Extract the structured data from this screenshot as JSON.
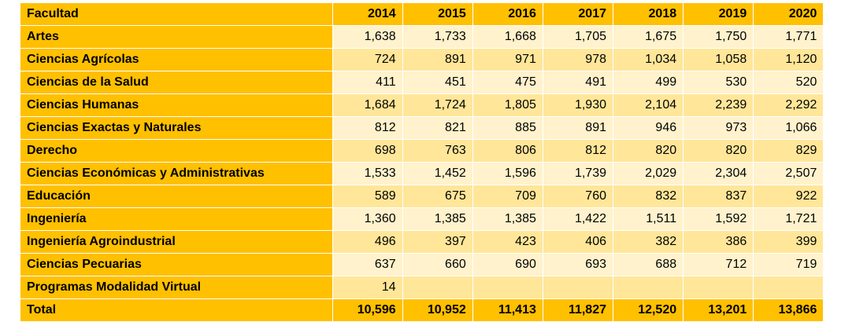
{
  "table": {
    "header": {
      "facultad": "Facultad",
      "years": [
        "2014",
        "2015",
        "2016",
        "2017",
        "2018",
        "2019",
        "2020"
      ]
    },
    "rows": [
      {
        "name": "Artes",
        "values": [
          "1,638",
          "1,733",
          "1,668",
          "1,705",
          "1,675",
          "1,750",
          "1,771"
        ]
      },
      {
        "name": "Ciencias Agrícolas",
        "values": [
          "724",
          "891",
          "971",
          "978",
          "1,034",
          "1,058",
          "1,120"
        ]
      },
      {
        "name": "Ciencias de la Salud",
        "values": [
          "411",
          "451",
          "475",
          "491",
          "499",
          "530",
          "520"
        ]
      },
      {
        "name": "Ciencias Humanas",
        "values": [
          "1,684",
          "1,724",
          "1,805",
          "1,930",
          "2,104",
          "2,239",
          "2,292"
        ]
      },
      {
        "name": "Ciencias Exactas y Naturales",
        "values": [
          "812",
          "821",
          "885",
          "891",
          "946",
          "973",
          "1,066"
        ]
      },
      {
        "name": "Derecho",
        "values": [
          "698",
          "763",
          "806",
          "812",
          "820",
          "820",
          "829"
        ]
      },
      {
        "name": "Ciencias Económicas y Administrativas",
        "values": [
          "1,533",
          "1,452",
          "1,596",
          "1,739",
          "2,029",
          "2,304",
          "2,507"
        ]
      },
      {
        "name": "Educación",
        "values": [
          "589",
          "675",
          "709",
          "760",
          "832",
          "837",
          "922"
        ]
      },
      {
        "name": "Ingeniería",
        "values": [
          "1,360",
          "1,385",
          "1,385",
          "1,422",
          "1,511",
          "1,592",
          "1,721"
        ]
      },
      {
        "name": "Ingeniería Agroindustrial",
        "values": [
          "496",
          "397",
          "423",
          "406",
          "382",
          "386",
          "399"
        ]
      },
      {
        "name": "Ciencias Pecuarias",
        "values": [
          "637",
          "660",
          "690",
          "693",
          "688",
          "712",
          "719"
        ]
      },
      {
        "name": "Programas Modalidad Virtual",
        "values": [
          "14",
          "",
          "",
          "",
          "",
          "",
          ""
        ]
      }
    ],
    "total": {
      "name": "Total",
      "values": [
        "10,596",
        "10,952",
        "11,413",
        "11,827",
        "12,520",
        "13,201",
        "13,866"
      ]
    }
  },
  "colors": {
    "header": "#ffc000",
    "row_light": "#fff2cc",
    "row_dark": "#ffe699"
  }
}
